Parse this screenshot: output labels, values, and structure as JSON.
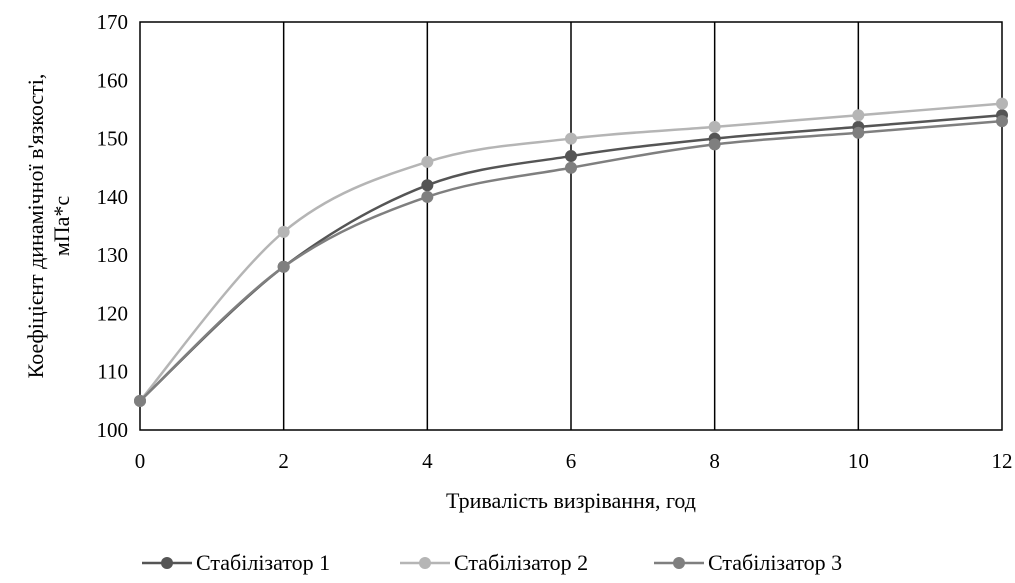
{
  "chart_data": {
    "type": "line",
    "title": "",
    "xlabel": "Тривалість визрівання, год",
    "ylabel_line1": "Коефіцієнт динамічної в'язкості,",
    "ylabel_line2": "мПа*с",
    "x": [
      0,
      2,
      4,
      6,
      8,
      10,
      12
    ],
    "xlim": [
      0,
      12
    ],
    "ylim": [
      100,
      170
    ],
    "xticks": [
      "0",
      "2",
      "4",
      "6",
      "8",
      "10",
      "12"
    ],
    "yticks": [
      "100",
      "110",
      "120",
      "130",
      "140",
      "150",
      "160",
      "170"
    ],
    "grid": "vertical",
    "legend_position": "bottom",
    "smooth": true,
    "series": [
      {
        "name": "Стабілізатор 1",
        "color": "#555555",
        "values": [
          105,
          128,
          142,
          147,
          150,
          152,
          154
        ]
      },
      {
        "name": "Стабілізатор 2",
        "color": "#b5b5b5",
        "values": [
          105,
          134,
          146,
          150,
          152,
          154,
          156
        ]
      },
      {
        "name": "Стабілізатор 3",
        "color": "#7f7f7f",
        "values": [
          105,
          128,
          140,
          145,
          149,
          151,
          153
        ]
      }
    ]
  }
}
